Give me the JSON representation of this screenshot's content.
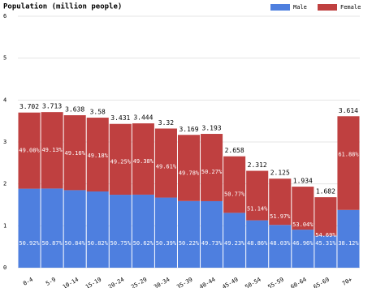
{
  "chart_data": {
    "type": "stacked-bar",
    "title": "Population (million people)",
    "categories": [
      "0-4",
      "5-9",
      "10-14",
      "15-19",
      "20-24",
      "25-29",
      "30-34",
      "35-39",
      "40-44",
      "45-49",
      "50-54",
      "55-59",
      "60-64",
      "65-69",
      "70+"
    ],
    "totals": [
      3.702,
      3.713,
      3.638,
      3.58,
      3.431,
      3.444,
      3.32,
      3.169,
      3.193,
      2.658,
      2.312,
      2.125,
      1.934,
      1.682,
      3.614
    ],
    "series": [
      {
        "name": "Male",
        "color": "#4e7fdf",
        "values": [
          1.885,
          1.889,
          1.85,
          1.819,
          1.741,
          1.743,
          1.673,
          1.591,
          1.588,
          1.309,
          1.13,
          1.021,
          0.908,
          0.762,
          1.378
        ],
        "value_labels": [
          "50.92%",
          "50.87%",
          "50.84%",
          "50.82%",
          "50.75%",
          "50.62%",
          "50.39%",
          "50.22%",
          "49.73%",
          "49.23%",
          "48.86%",
          "48.03%",
          "46.96%",
          "45.31%",
          "38.12%"
        ]
      },
      {
        "name": "Female",
        "color": "#bf4040",
        "values": [
          1.817,
          1.824,
          1.788,
          1.761,
          1.69,
          1.701,
          1.647,
          1.578,
          1.605,
          1.349,
          1.182,
          1.104,
          1.026,
          0.92,
          2.236
        ],
        "value_labels": [
          "49.08%",
          "49.13%",
          "49.16%",
          "49.18%",
          "49.25%",
          "49.38%",
          "49.61%",
          "49.78%",
          "50.27%",
          "50.77%",
          "51.14%",
          "51.97%",
          "53.04%",
          "54.69%",
          "61.88%"
        ]
      }
    ],
    "ylim": [
      0,
      6
    ],
    "yticks": [
      0,
      1,
      2,
      3,
      4,
      5,
      6
    ],
    "grid": true
  }
}
